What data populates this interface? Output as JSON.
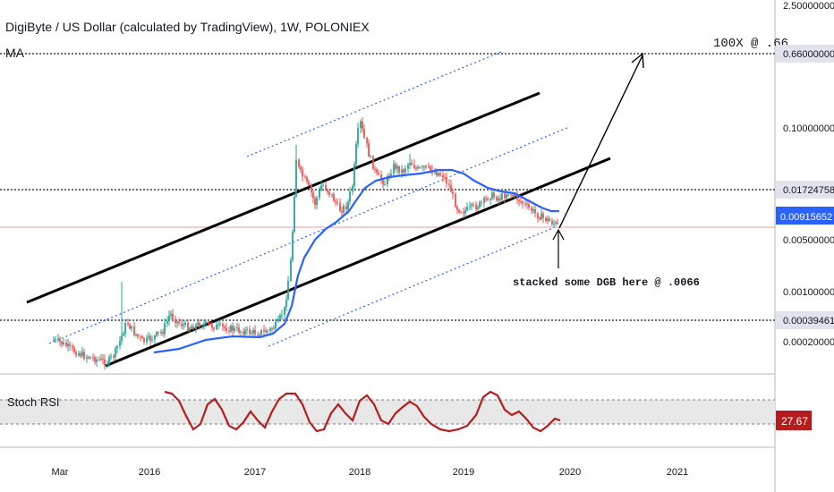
{
  "chart_data": {
    "type": "candlestick",
    "title": "DigiByte / US Dollar (calculated by TradingView), 1W, POLONIEX",
    "indicator_label": "MA",
    "x_ticks": [
      "Mar",
      "2016",
      "2017",
      "2018",
      "2019",
      "2020",
      "2021"
    ],
    "y_scale": "log",
    "y_ticks": [
      "2.50000000",
      "0.66000000",
      "0.10000000",
      "0.01724758",
      "0.00915652",
      "0.00500000",
      "0.00100000",
      "0.00039461",
      "0.00020000"
    ],
    "horizontal_levels": [
      {
        "label": "0.66000000",
        "style": "dotted"
      },
      {
        "label": "0.01724758",
        "style": "dotted"
      },
      {
        "label": "0.00039461",
        "style": "dotted"
      }
    ],
    "current_price_label": "0.00915652",
    "annotations": [
      {
        "text": "100X @ .66"
      },
      {
        "text": "stacked some DGB here @ .0066"
      }
    ],
    "stoch_rsi": {
      "label": "Stoch RSI",
      "current_value": "27.67"
    },
    "colors": {
      "up": "#26a69a",
      "down": "#ef5350",
      "ma": "#2962ff",
      "rsi": "#b71c1c",
      "price_tag": "#2962ff",
      "rsi_tag": "#b71c1c"
    }
  }
}
